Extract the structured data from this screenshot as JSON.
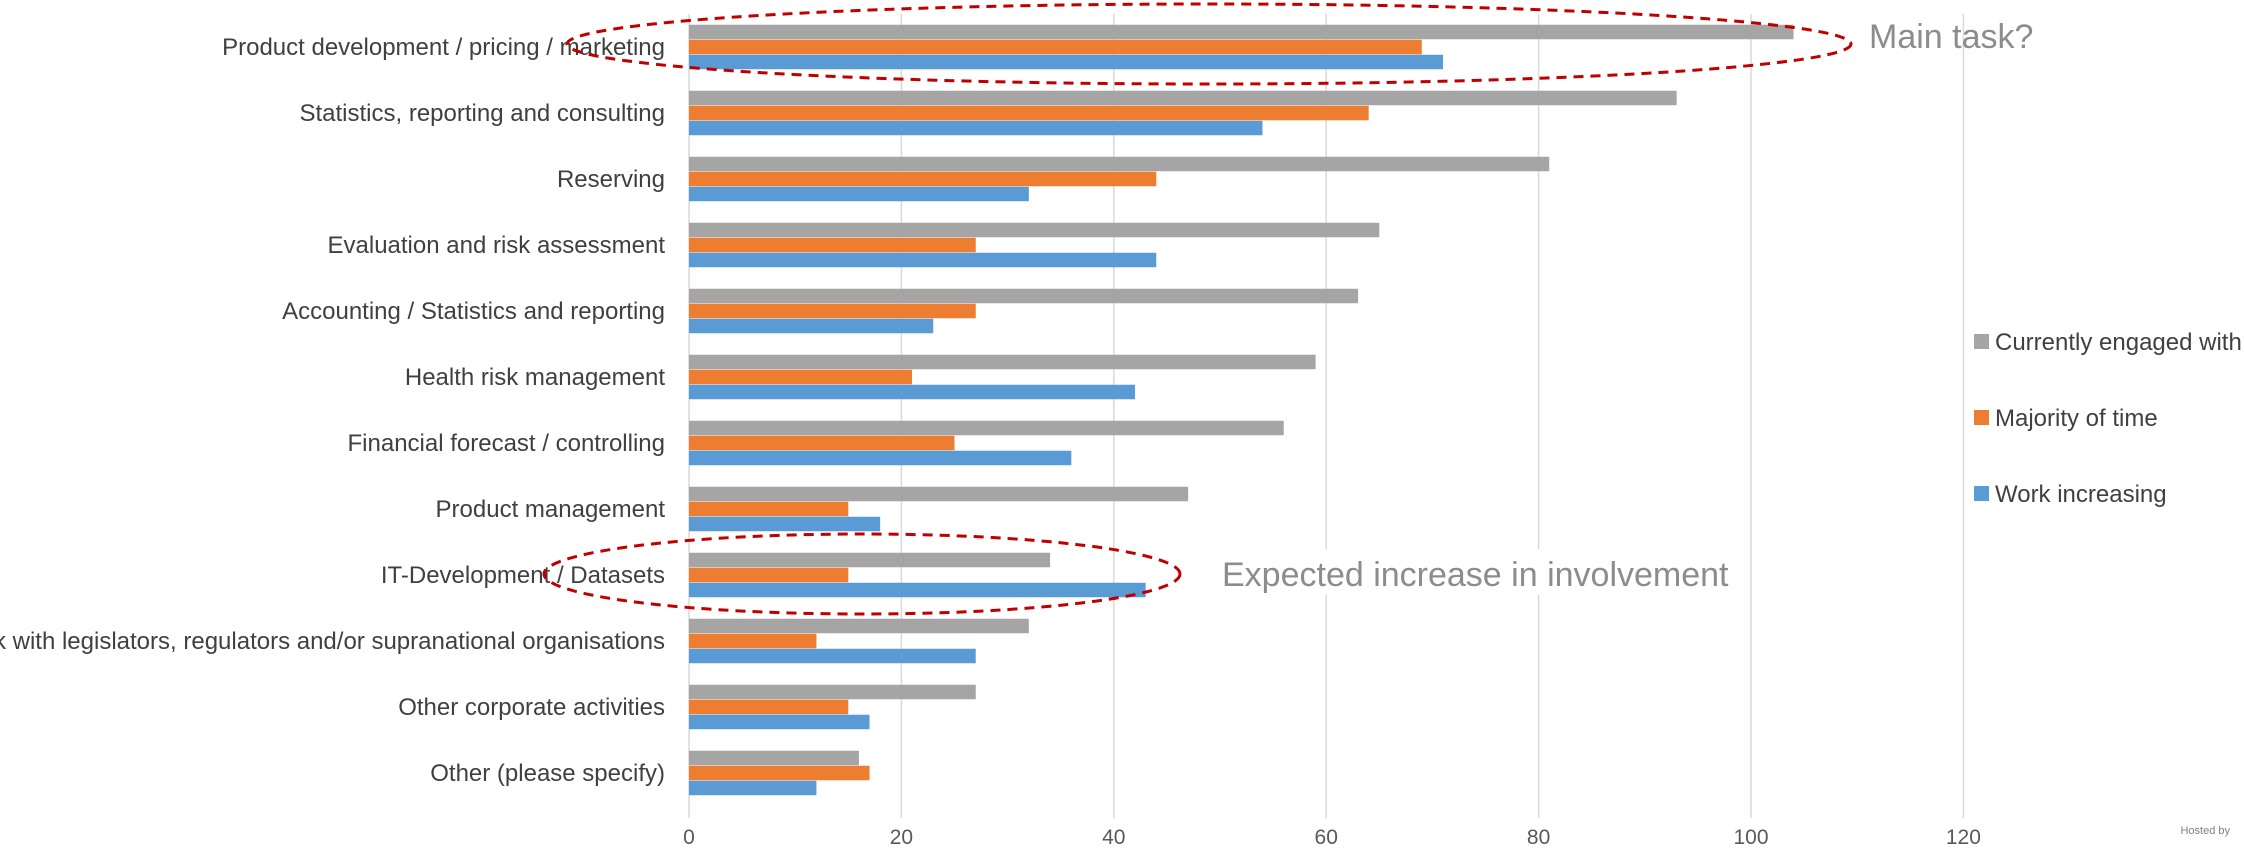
{
  "chart_data": {
    "type": "bar",
    "orientation": "horizontal",
    "categories": [
      "Product development / pricing / marketing",
      "Statistics, reporting and consulting",
      "Reserving",
      "Evaluation and risk assessment",
      "Accounting / Statistics and reporting",
      "Health risk management",
      "Financial forecast / controlling",
      "Product management",
      "IT-Development / Datasets",
      "Work with legislators, regulators and/or supranational organisations",
      "Other corporate activities",
      "Other (please specify)"
    ],
    "series": [
      {
        "name": "Currently engaged with",
        "color": "#a5a5a5",
        "values": [
          104,
          93,
          81,
          65,
          63,
          59,
          56,
          47,
          34,
          32,
          27,
          16
        ]
      },
      {
        "name": "Majority of time",
        "color": "#ed7d31",
        "values": [
          69,
          64,
          44,
          27,
          27,
          21,
          25,
          15,
          15,
          12,
          15,
          17
        ]
      },
      {
        "name": "Work increasing",
        "color": "#5b9bd5",
        "values": [
          71,
          54,
          32,
          44,
          23,
          42,
          36,
          18,
          43,
          27,
          17,
          12
        ]
      }
    ],
    "xlim": [
      0,
      120
    ],
    "x_ticks": [
      "0",
      "20",
      "40",
      "60",
      "80",
      "100",
      "120"
    ],
    "grid": true,
    "legend_position": "right",
    "annotations": [
      {
        "text": "Main task?",
        "category_index": 0
      },
      {
        "text": "Expected increase in involvement",
        "category_index": 8
      }
    ],
    "annotation_color": "#c00000"
  },
  "footer": {
    "hosted_text": "Hosted by"
  }
}
